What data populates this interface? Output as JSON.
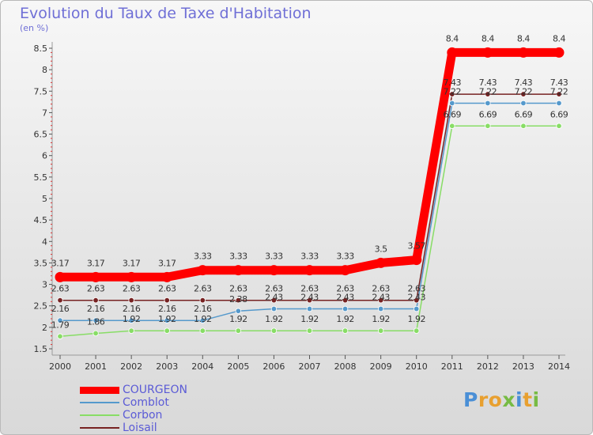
{
  "chart_data": {
    "type": "line",
    "title": "Evolution du Taux de Taxe d'Habitation",
    "ylabel": "(en %)",
    "xlabel": "",
    "ylim": [
      1.5,
      8.5
    ],
    "yticks": [
      "1.5",
      "2",
      "2.5",
      "3",
      "3.5",
      "4",
      "4.5",
      "5",
      "5.5",
      "6",
      "6.5",
      "7",
      "7.5",
      "8",
      "8.5"
    ],
    "x": [
      "2000",
      "2001",
      "2002",
      "2003",
      "2004",
      "2005",
      "2006",
      "2007",
      "2008",
      "2009",
      "2010",
      "2011",
      "2012",
      "2013",
      "2014"
    ],
    "grid": false,
    "legend_position": "bottom-left",
    "series": [
      {
        "name": "COURGEON",
        "color": "#ff0000",
        "values": [
          3.17,
          3.17,
          3.17,
          3.17,
          3.33,
          3.33,
          3.33,
          3.33,
          3.33,
          3.5,
          3.57,
          8.4,
          8.4,
          8.4,
          8.4
        ],
        "labels": [
          "3.17",
          "3.17",
          "3.17",
          "3.17",
          "3.33",
          "3.33",
          "3.33",
          "3.33",
          "3.33",
          "3.5",
          "3.57",
          "8.4",
          "8.4",
          "8.4",
          "8.4"
        ]
      },
      {
        "name": "Comblot",
        "color": "#5599cc",
        "values": [
          2.16,
          2.16,
          2.16,
          2.16,
          2.16,
          2.38,
          2.43,
          2.43,
          2.43,
          2.43,
          2.43,
          7.22,
          7.22,
          7.22,
          7.22
        ],
        "labels": [
          "2.16",
          "2.16",
          "2.16",
          "2.16",
          "2.16",
          "2.38",
          "2.43",
          "2.43",
          "2.43",
          "2.43",
          "2.43",
          "7.22",
          "7.22",
          "7.22",
          "7.22"
        ]
      },
      {
        "name": "Corbon",
        "color": "#88dd66",
        "values": [
          1.79,
          1.86,
          1.92,
          1.92,
          1.92,
          1.92,
          1.92,
          1.92,
          1.92,
          1.92,
          1.92,
          6.69,
          6.69,
          6.69,
          6.69
        ],
        "labels": [
          "1.79",
          "1.86",
          "1.92",
          "1.92",
          "1.92",
          "1.92",
          "1.92",
          "1.92",
          "1.92",
          "1.92",
          "1.92",
          "6.69",
          "6.69",
          "6.69",
          "6.69"
        ]
      },
      {
        "name": "Loisail",
        "color": "#772222",
        "values": [
          2.63,
          2.63,
          2.63,
          2.63,
          2.63,
          2.63,
          2.63,
          2.63,
          2.63,
          2.63,
          2.63,
          7.43,
          7.43,
          7.43,
          7.43
        ],
        "labels": [
          "2.63",
          "2.63",
          "2.63",
          "2.63",
          "2.63",
          "2.63",
          "2.63",
          "2.63",
          "2.63",
          "2.63",
          "2.63",
          "7.43",
          "7.43",
          "7.43",
          "7.43"
        ]
      }
    ]
  },
  "watermark": {
    "text": "Proxiti",
    "colors": [
      "#4a8fd6",
      "#e8a030",
      "#e8a030",
      "#77bb44",
      "#4a8fd6",
      "#e8a030",
      "#77bb44"
    ]
  }
}
